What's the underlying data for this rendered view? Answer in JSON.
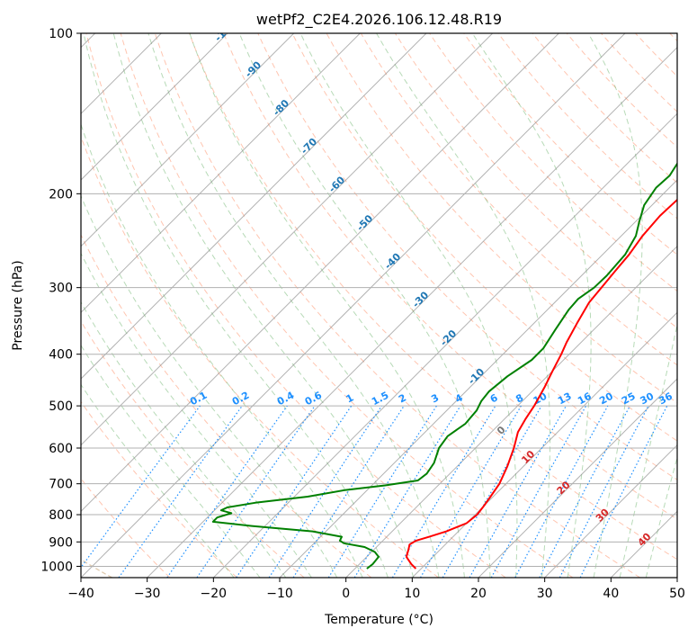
{
  "chart_data": {
    "type": "line",
    "title": "wetPf2_C2E4.2026.106.12.48.R19",
    "xlabel": "Temperature (°C)",
    "ylabel": "Pressure (hPa)",
    "xlim": [
      -40,
      50
    ],
    "ylim": [
      1050,
      100
    ],
    "x_ticks": [
      -40,
      -30,
      -20,
      -10,
      0,
      10,
      20,
      30,
      40,
      50
    ],
    "x_tick_labels": [
      "−40",
      "−30",
      "−20",
      "−10",
      "0",
      "10",
      "20",
      "30",
      "40",
      "50"
    ],
    "y_ticks": [
      100,
      200,
      300,
      400,
      500,
      600,
      700,
      800,
      900,
      1000
    ],
    "y_tick_labels": [
      "100",
      "200",
      "300",
      "400",
      "500",
      "600",
      "700",
      "800",
      "900",
      "1000"
    ],
    "isotherm_labels": [
      "-100",
      "-90",
      "-80",
      "-70",
      "-60",
      "-50",
      "-40",
      "-30",
      "-20",
      "-10",
      "0",
      "10",
      "20",
      "30",
      "40"
    ],
    "mixing_ratio_labels": [
      "0.1",
      "0.2",
      "0.4",
      "0.6",
      "1",
      "1.5",
      "2",
      "3",
      "4",
      "6",
      "8",
      "10",
      "13",
      "16",
      "20",
      "25",
      "30",
      "36"
    ],
    "series": [
      {
        "name": "Temperature",
        "color": "#ff0000",
        "points": [
          [
            1010,
            9.2
          ],
          [
            990,
            7.8
          ],
          [
            960,
            6.0
          ],
          [
            930,
            5.2
          ],
          [
            910,
            4.6
          ],
          [
            895,
            5.0
          ],
          [
            880,
            6.4
          ],
          [
            860,
            8.2
          ],
          [
            830,
            10.0
          ],
          [
            800,
            10.3
          ],
          [
            770,
            10.0
          ],
          [
            740,
            9.6
          ],
          [
            700,
            9.0
          ],
          [
            650,
            7.6
          ],
          [
            600,
            5.8
          ],
          [
            560,
            4.0
          ],
          [
            530,
            3.2
          ],
          [
            500,
            2.5
          ],
          [
            460,
            1.2
          ],
          [
            430,
            0.0
          ],
          [
            400,
            -1.2
          ],
          [
            380,
            -2.2
          ],
          [
            350,
            -3.5
          ],
          [
            320,
            -4.8
          ],
          [
            300,
            -5.2
          ],
          [
            280,
            -5.6
          ],
          [
            260,
            -6.0
          ],
          [
            240,
            -6.8
          ],
          [
            220,
            -7.2
          ],
          [
            205,
            -7.0
          ],
          [
            195,
            -6.0
          ],
          [
            185,
            -3.5
          ],
          [
            175,
            -0.5
          ],
          [
            165,
            2.8
          ],
          [
            155,
            5.8
          ],
          [
            145,
            7.5
          ],
          [
            135,
            9.0
          ],
          [
            125,
            10.0
          ],
          [
            115,
            10.5
          ],
          [
            108,
            11.5
          ],
          [
            100,
            12.5
          ]
        ]
      },
      {
        "name": "Dewpoint",
        "color": "#008000",
        "points": [
          [
            1010,
            1.8
          ],
          [
            990,
            2.0
          ],
          [
            960,
            1.8
          ],
          [
            940,
            0.5
          ],
          [
            920,
            -1.8
          ],
          [
            905,
            -5.5
          ],
          [
            895,
            -6.5
          ],
          [
            880,
            -6.8
          ],
          [
            860,
            -12.0
          ],
          [
            840,
            -22.0
          ],
          [
            825,
            -28.5
          ],
          [
            810,
            -28.5
          ],
          [
            795,
            -27.0
          ],
          [
            785,
            -29.0
          ],
          [
            775,
            -28.5
          ],
          [
            760,
            -25.0
          ],
          [
            740,
            -18.0
          ],
          [
            720,
            -13.5
          ],
          [
            705,
            -8.0
          ],
          [
            690,
            -3.8
          ],
          [
            670,
            -3.5
          ],
          [
            640,
            -4.0
          ],
          [
            600,
            -5.5
          ],
          [
            570,
            -6.0
          ],
          [
            540,
            -5.2
          ],
          [
            510,
            -5.5
          ],
          [
            490,
            -6.2
          ],
          [
            470,
            -6.5
          ],
          [
            440,
            -6.0
          ],
          [
            410,
            -4.8
          ],
          [
            390,
            -4.8
          ],
          [
            360,
            -5.8
          ],
          [
            330,
            -6.8
          ],
          [
            315,
            -7.0
          ],
          [
            300,
            -6.3
          ],
          [
            285,
            -6.2
          ],
          [
            260,
            -6.6
          ],
          [
            240,
            -7.8
          ],
          [
            225,
            -9.5
          ],
          [
            210,
            -11.2
          ],
          [
            195,
            -12.0
          ],
          [
            185,
            -11.8
          ],
          [
            175,
            -12.5
          ],
          [
            168,
            -13.8
          ],
          [
            160,
            -13.8
          ],
          [
            150,
            -11.0
          ],
          [
            142,
            -9.0
          ],
          [
            135,
            -9.2
          ],
          [
            125,
            -9.6
          ],
          [
            115,
            -9.0
          ],
          [
            108,
            -7.5
          ],
          [
            100,
            -5.5
          ]
        ]
      }
    ]
  },
  "colors": {
    "temperature": "#ff0000",
    "dewpoint": "#008000",
    "grid": "#b0b0b0",
    "isotherms": "#808080",
    "dry_adiabats": "#ff7f50",
    "moist_adiabats": "#5fae5f",
    "mixing_ratio": "#1e90ff"
  }
}
